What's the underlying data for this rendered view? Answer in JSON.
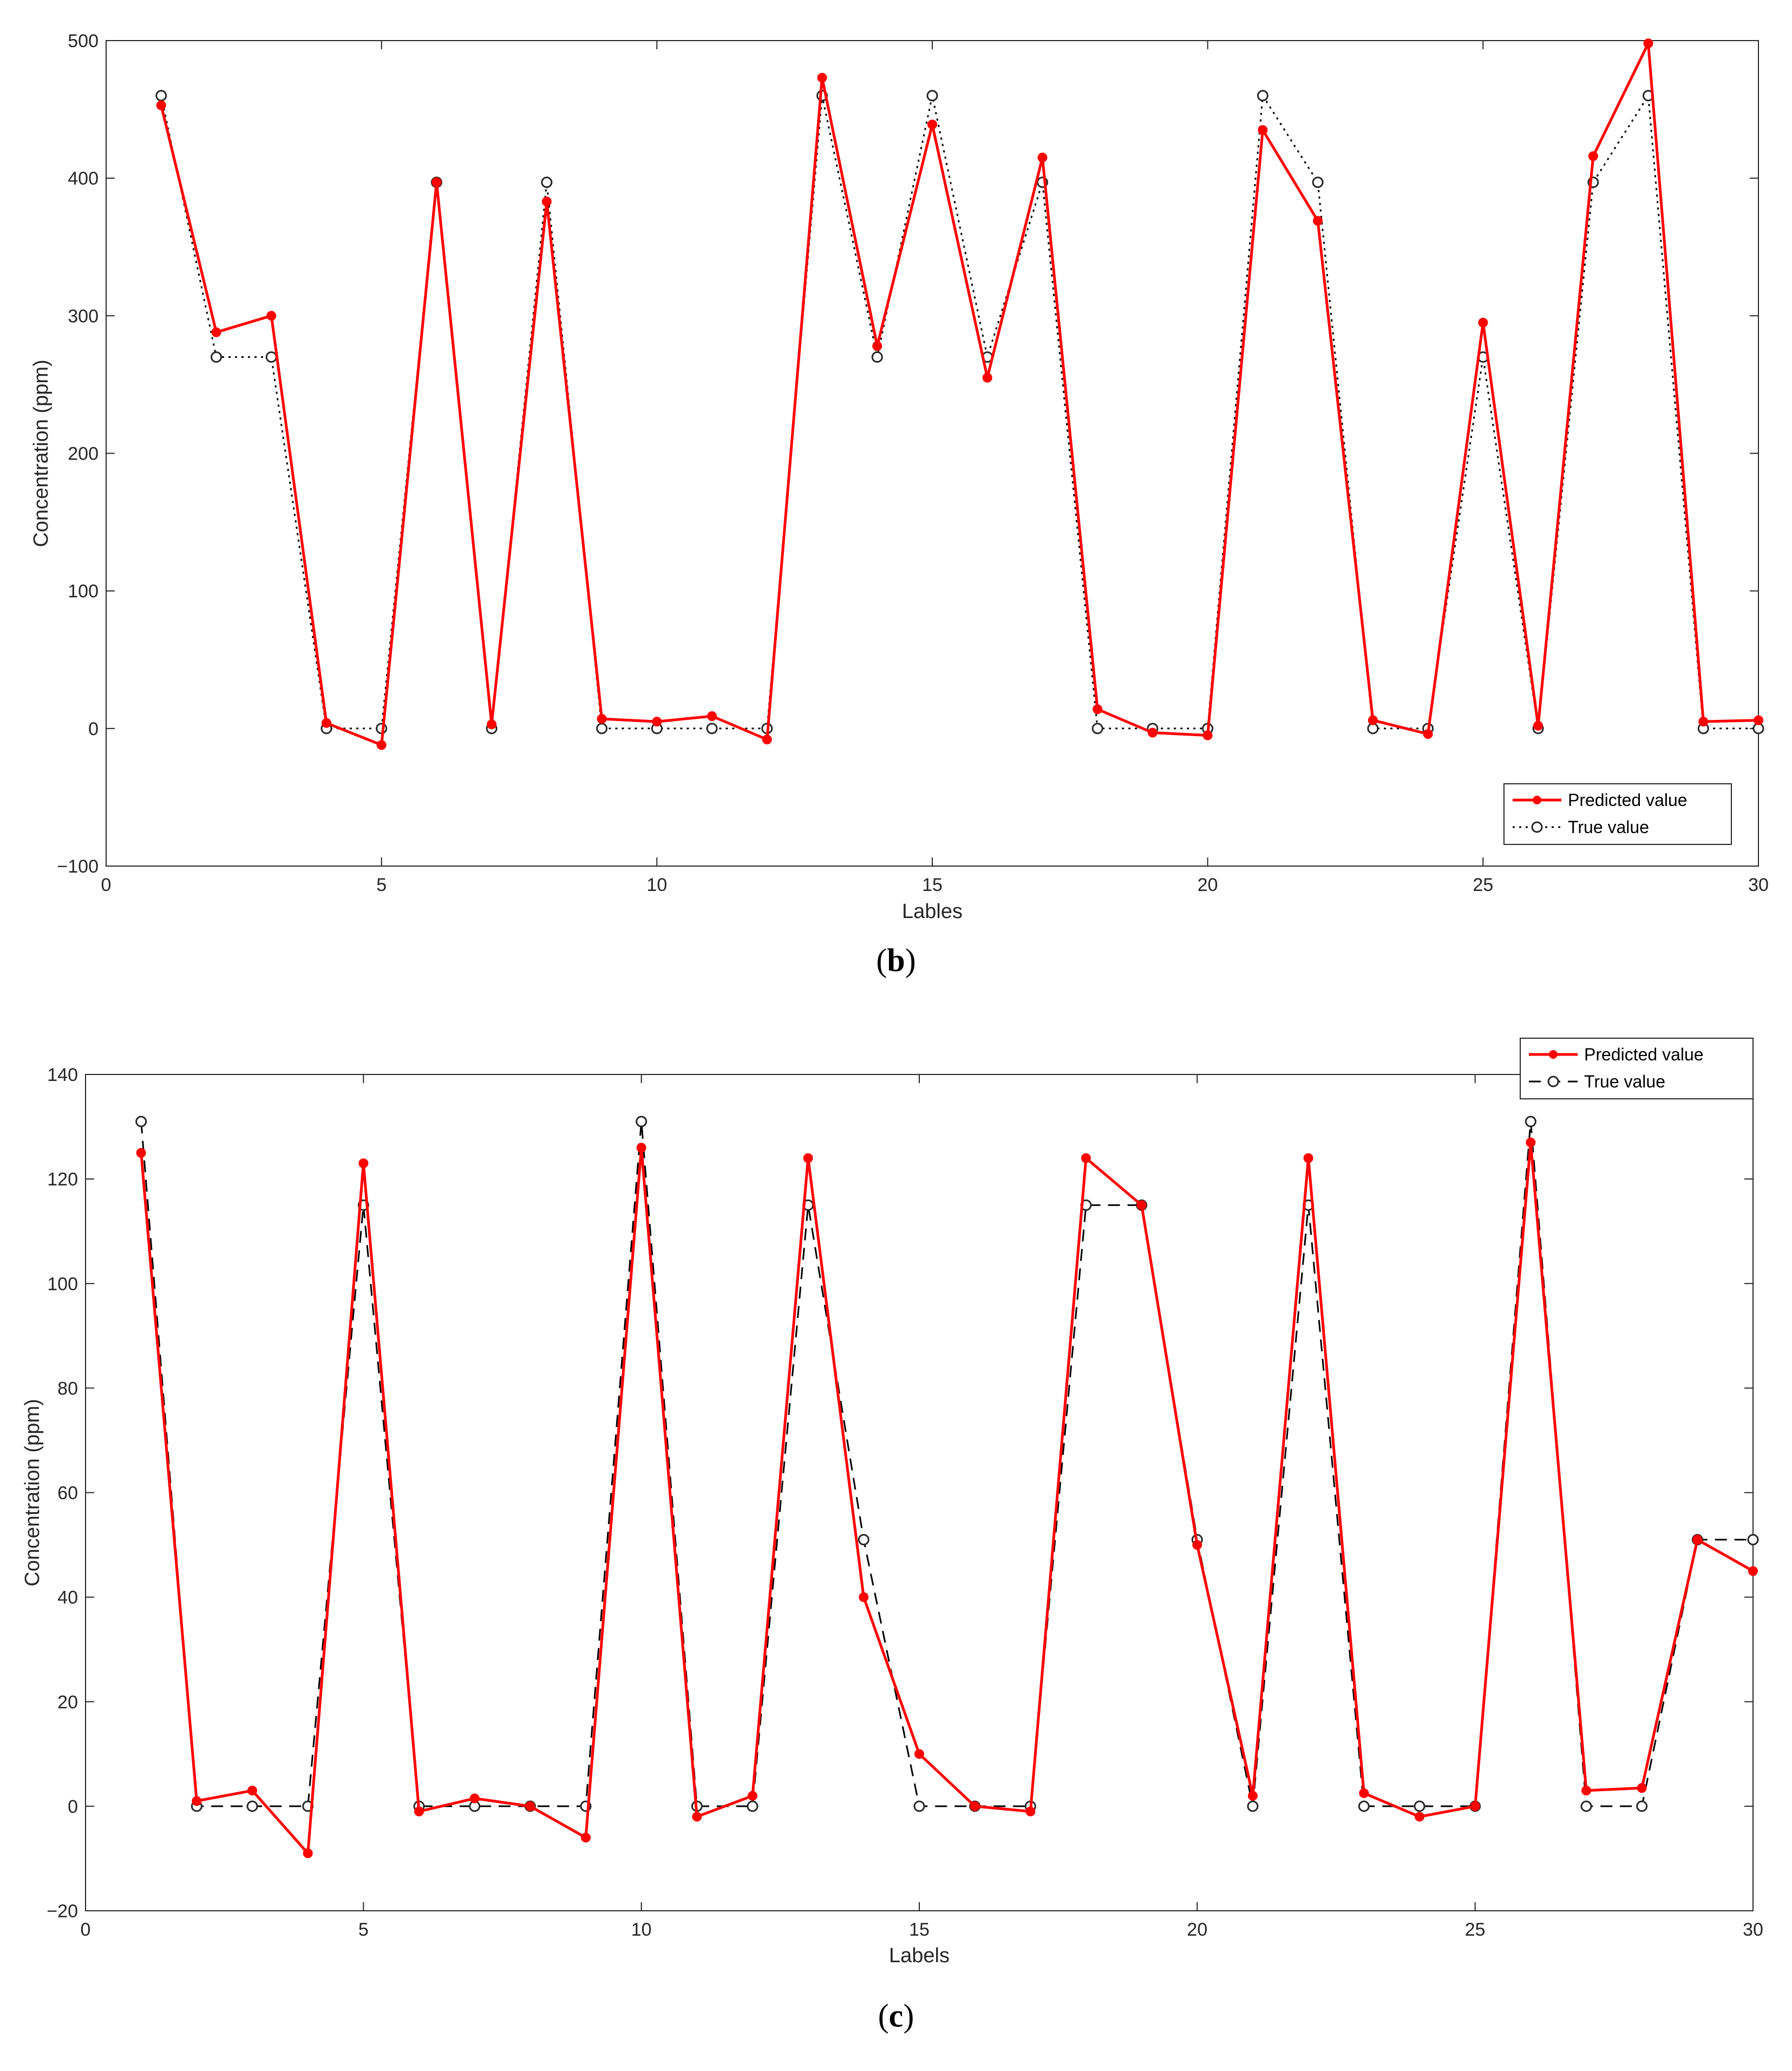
{
  "chart_data": [
    {
      "type": "line",
      "panel": "b",
      "xlabel": "Lables",
      "ylabel": "Concentration (ppm)",
      "xlim": [
        0,
        30
      ],
      "ylim": [
        -100,
        500
      ],
      "xticks": [
        0,
        5,
        10,
        15,
        20,
        25,
        30
      ],
      "yticks": [
        -100,
        0,
        100,
        200,
        300,
        400,
        500
      ],
      "x": [
        1,
        2,
        3,
        4,
        5,
        6,
        7,
        8,
        9,
        10,
        11,
        12,
        13,
        14,
        15,
        16,
        17,
        18,
        19,
        20,
        21,
        22,
        23,
        24,
        25,
        26,
        27,
        28,
        29,
        30
      ],
      "series": [
        {
          "name": "Predicted value",
          "color": "#ff0000",
          "style": "solid",
          "marker": "filled-circle",
          "values": [
            453,
            288,
            300,
            4,
            -12,
            397,
            3,
            383,
            7,
            5,
            9,
            -8,
            473,
            278,
            439,
            255,
            415,
            14,
            -3,
            -5,
            435,
            369,
            6,
            -4,
            295,
            2,
            416,
            498,
            5,
            6
          ]
        },
        {
          "name": "True value",
          "color": "#000000",
          "style": "dotted",
          "marker": "open-circle",
          "values": [
            460,
            270,
            270,
            0,
            0,
            397,
            0,
            397,
            0,
            0,
            0,
            0,
            460,
            270,
            460,
            270,
            397,
            0,
            0,
            0,
            460,
            397,
            0,
            0,
            270,
            0,
            397,
            460,
            0,
            0
          ]
        }
      ],
      "legend_position": "bottom-right",
      "caption_letter": "b"
    },
    {
      "type": "line",
      "panel": "c",
      "xlabel": "Labels",
      "ylabel": "Concentration (ppm)",
      "xlim": [
        0,
        30
      ],
      "ylim": [
        -20,
        140
      ],
      "xticks": [
        0,
        5,
        10,
        15,
        20,
        25,
        30
      ],
      "yticks": [
        -20,
        0,
        20,
        40,
        60,
        80,
        100,
        120,
        140
      ],
      "x": [
        1,
        2,
        3,
        4,
        5,
        6,
        7,
        8,
        9,
        10,
        11,
        12,
        13,
        14,
        15,
        16,
        17,
        18,
        19,
        20,
        21,
        22,
        23,
        24,
        25,
        26,
        27,
        28,
        29,
        30
      ],
      "series": [
        {
          "name": "Predicted value",
          "color": "#ff0000",
          "style": "solid",
          "marker": "filled-circle",
          "values": [
            125,
            1,
            3,
            -9,
            123,
            -1,
            1.5,
            0,
            -6,
            126,
            -2,
            2,
            124,
            40,
            10,
            0,
            -1,
            124,
            115,
            50,
            2,
            124,
            2.5,
            -2,
            0,
            127,
            3,
            3.5,
            51,
            45
          ]
        },
        {
          "name": "True value",
          "color": "#000000",
          "style": "dashed",
          "marker": "open-circle",
          "values": [
            131,
            0,
            0,
            0,
            115,
            0,
            0,
            0,
            0,
            131,
            0,
            0,
            115,
            51,
            0,
            0,
            0,
            115,
            115,
            51,
            0,
            115,
            0,
            0,
            0,
            131,
            0,
            0,
            51,
            51
          ]
        }
      ],
      "legend_position": "top-right",
      "caption_letter": "c"
    }
  ]
}
